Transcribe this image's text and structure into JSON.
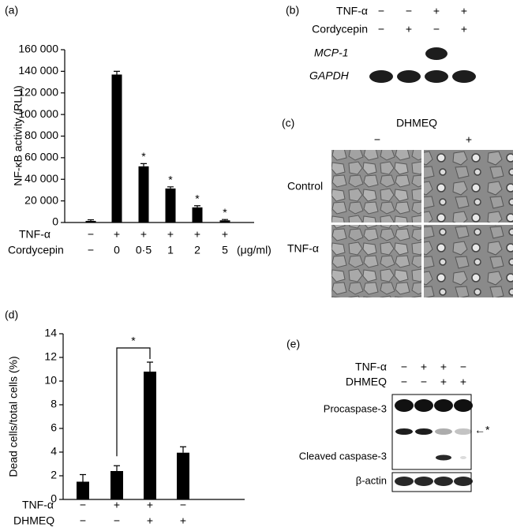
{
  "chart_data": [
    {
      "type": "bar",
      "panel_label": "(a)",
      "ylabel": "NF-κB activity (RLU)",
      "color": "#000000",
      "ylim": [
        0,
        160000
      ],
      "yticks": [
        0,
        {
          "value": 20000,
          "label": "20 000"
        },
        {
          "value": 40000,
          "label": "40 000"
        },
        {
          "value": 60000,
          "label": "60 000"
        },
        {
          "value": 80000,
          "label": "80 000"
        },
        {
          "value": 100000,
          "label": "100 000"
        },
        {
          "value": 120000,
          "label": "120 000"
        },
        {
          "value": 140000,
          "label": "140 000"
        },
        {
          "value": 160000,
          "label": "160 000"
        }
      ],
      "values": [
        1500,
        137000,
        52000,
        31500,
        14000,
        2000
      ],
      "errors": [
        1000,
        3000,
        2500,
        1500,
        1500,
        800
      ],
      "significance": [
        null,
        null,
        "*",
        "*",
        "*",
        "*"
      ],
      "conditions": [
        {
          "name": "TNF-α",
          "labels": [
            "−",
            "+",
            "+",
            "+",
            "+",
            "+"
          ]
        },
        {
          "name": "Cordycepin",
          "labels": [
            "−",
            "0",
            "0·5",
            "1",
            "2",
            "5"
          ],
          "unit": "(μg/ml)"
        }
      ]
    },
    {
      "type": "bar",
      "panel_label": "(d)",
      "ylabel": "Dead cells/total cells (%)",
      "color": "#000000",
      "ylim": [
        0,
        14
      ],
      "yticks": [
        0,
        2,
        4,
        6,
        8,
        10,
        12,
        14
      ],
      "values": [
        1.5,
        2.4,
        10.8,
        3.95
      ],
      "errors": [
        0.6,
        0.45,
        0.8,
        0.5
      ],
      "comparison_label": "*",
      "conditions": [
        {
          "name": "TNF-α",
          "labels": [
            "−",
            "+",
            "+",
            "−"
          ]
        },
        {
          "name": "DHMEQ",
          "labels": [
            "−",
            "−",
            "+",
            "+"
          ]
        }
      ]
    }
  ],
  "panel_b": {
    "label": "(b)",
    "conditions": [
      {
        "name": "TNF-α",
        "labels": [
          "−",
          "−",
          "+",
          "+"
        ]
      },
      {
        "name": "Cordycepin",
        "labels": [
          "−",
          "+",
          "−",
          "+"
        ]
      }
    ],
    "rows": [
      "MCP-1",
      "GAPDH"
    ]
  },
  "panel_c": {
    "label": "(c)",
    "treatment": "DHMEQ",
    "columns": [
      "−",
      "+"
    ],
    "rows": [
      "Control",
      "TNF-α"
    ]
  },
  "panel_e": {
    "label": "(e)",
    "conditions": [
      {
        "name": "TNF-α",
        "labels": [
          "−",
          "+",
          "+",
          "−"
        ]
      },
      {
        "name": "DHMEQ",
        "labels": [
          "−",
          "−",
          "+",
          "+"
        ]
      }
    ],
    "rows": [
      "Procaspase-3",
      "Cleaved caspase-3",
      "β-actin"
    ],
    "marker": "←*"
  }
}
